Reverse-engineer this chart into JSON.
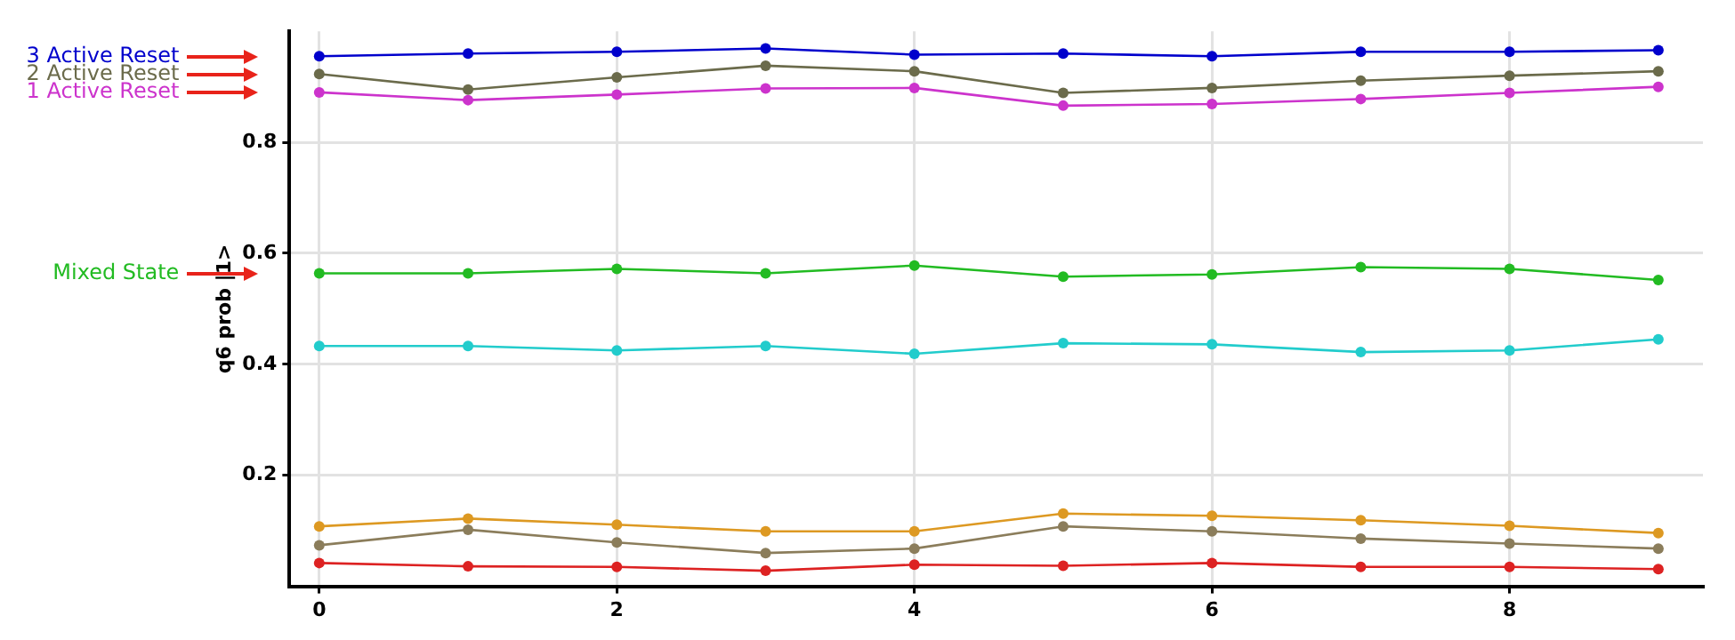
{
  "chart_data": {
    "type": "line",
    "ylabel": "q6 prob |1>",
    "x": [
      0,
      1,
      2,
      3,
      4,
      5,
      6,
      7,
      8,
      9
    ],
    "xlim": [
      -0.2,
      9.3
    ],
    "xticks": [
      0,
      2,
      4,
      6,
      8
    ],
    "ylim": [
      0,
      1
    ],
    "yticks": [
      0.2,
      0.4,
      0.6,
      0.8
    ],
    "grid": true,
    "legend": false,
    "marker": "circle",
    "line_style": "solid",
    "series": [
      {
        "name": "3 Active Reset",
        "color": "#0000cc",
        "values": [
          0.955,
          0.96,
          0.963,
          0.969,
          0.958,
          0.96,
          0.955,
          0.963,
          0.963,
          0.966
        ]
      },
      {
        "name": "2 Active Reset",
        "color": "#6b6b4b",
        "values": [
          0.923,
          0.895,
          0.917,
          0.938,
          0.928,
          0.889,
          0.898,
          0.911,
          0.92,
          0.928
        ]
      },
      {
        "name": "1 Active Reset",
        "color": "#cc33cc",
        "values": [
          0.89,
          0.876,
          0.886,
          0.897,
          0.898,
          0.866,
          0.869,
          0.878,
          0.889,
          0.9
        ]
      },
      {
        "name": "Mixed State",
        "color": "#22bb22",
        "values": [
          0.564,
          0.564,
          0.572,
          0.564,
          0.578,
          0.558,
          0.562,
          0.575,
          0.572,
          0.552
        ]
      },
      {
        "color": "#22cccc",
        "values": [
          0.433,
          0.433,
          0.425,
          0.433,
          0.419,
          0.438,
          0.436,
          0.422,
          0.425,
          0.445
        ]
      },
      {
        "color": "#dd9922",
        "values": [
          0.108,
          0.122,
          0.111,
          0.099,
          0.099,
          0.131,
          0.127,
          0.119,
          0.109,
          0.096
        ]
      },
      {
        "color": "#8b7d5b",
        "values": [
          0.074,
          0.102,
          0.079,
          0.06,
          0.068,
          0.108,
          0.099,
          0.086,
          0.077,
          0.068
        ]
      },
      {
        "color": "#dd2222",
        "values": [
          0.042,
          0.036,
          0.035,
          0.028,
          0.039,
          0.037,
          0.042,
          0.035,
          0.035,
          0.031
        ]
      }
    ]
  }
}
